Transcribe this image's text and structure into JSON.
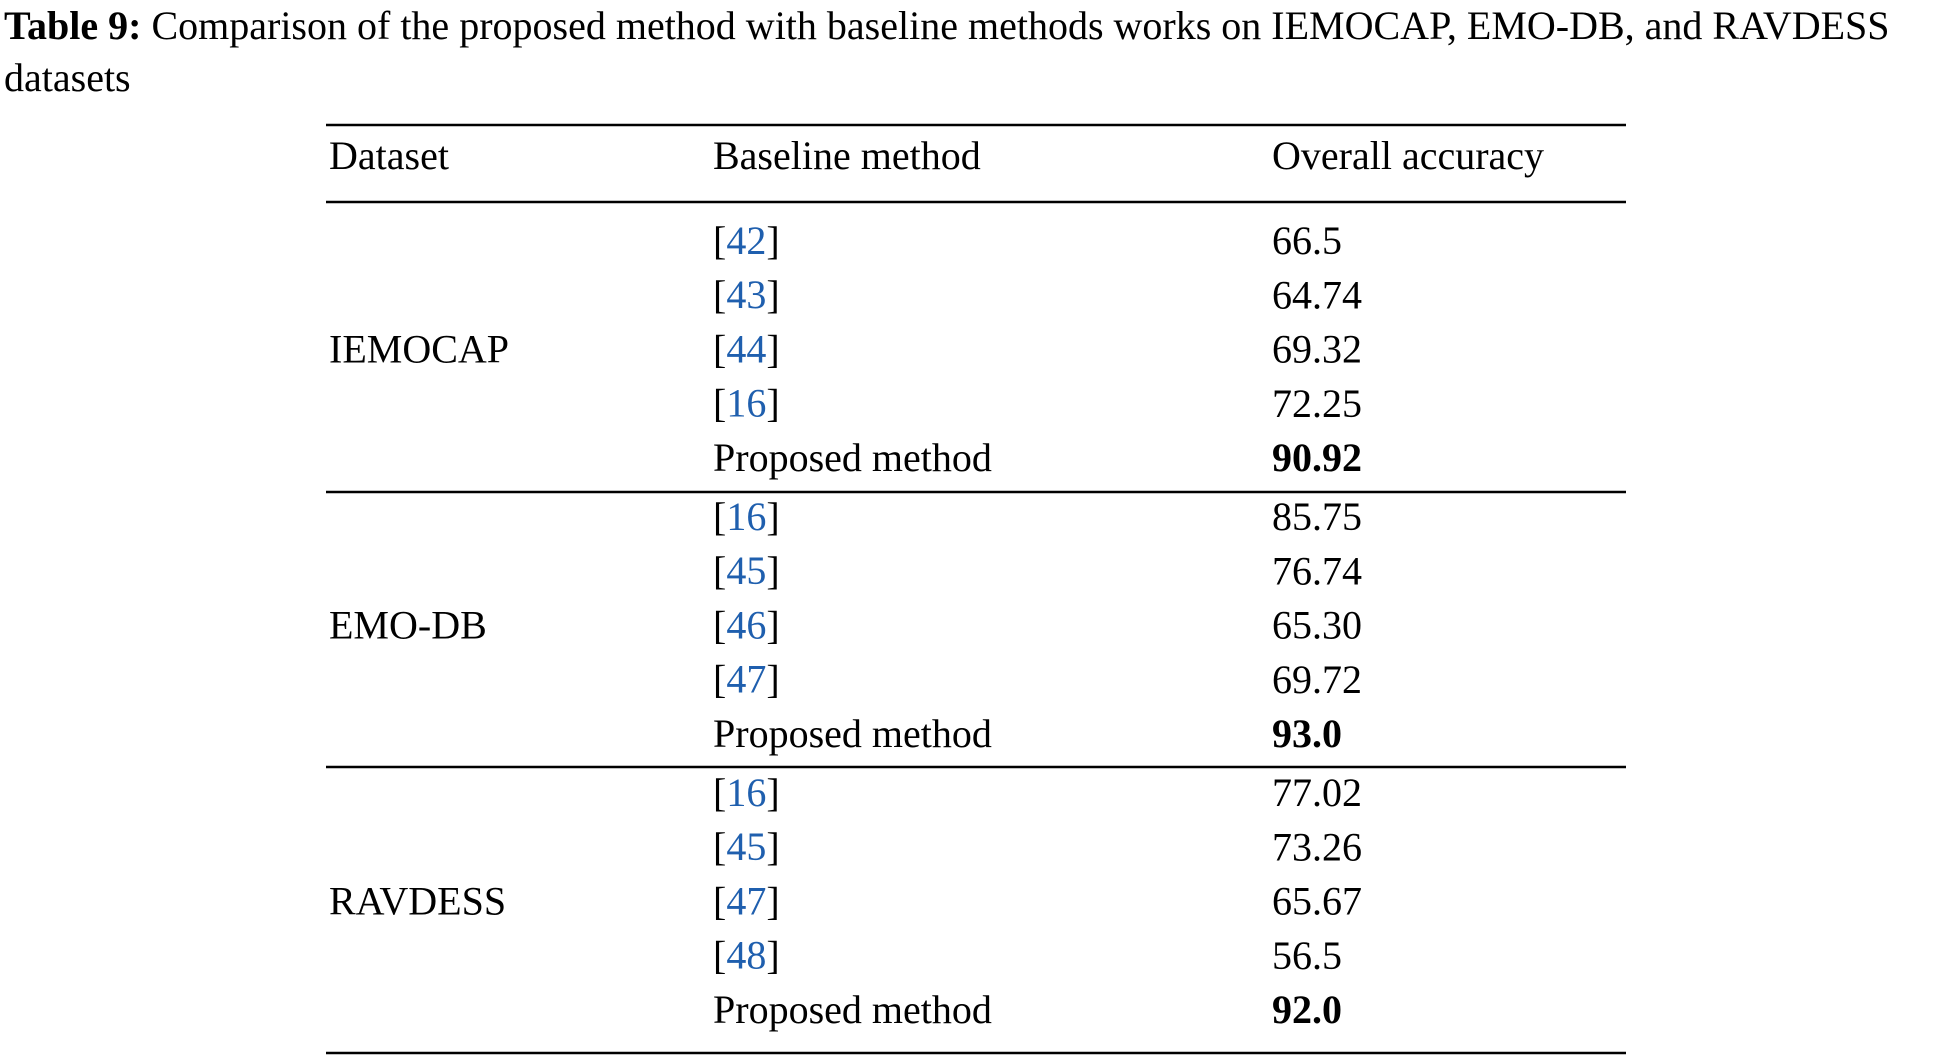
{
  "caption": {
    "label": "Table 9:",
    "text": "Comparison of the proposed method with baseline methods works on IEMOCAP, EMO-DB, and RAVDESS datasets"
  },
  "table": {
    "header": [
      "Dataset",
      "Baseline method",
      "Overall accuracy"
    ],
    "groups": [
      {
        "dataset": "IEMOCAP",
        "rows": [
          [
            "[42]",
            "66.5"
          ],
          [
            "[43]",
            "64.74"
          ],
          [
            "[44]",
            "69.32"
          ],
          [
            "[16]",
            "72.25"
          ],
          [
            "Proposed method",
            "90.92"
          ]
        ]
      },
      {
        "dataset": "EMO-DB",
        "rows": [
          [
            "[16]",
            "85.75"
          ],
          [
            "[45]",
            "76.74"
          ],
          [
            "[46]",
            "65.30"
          ],
          [
            "[47]",
            "69.72"
          ],
          [
            "Proposed method",
            "93.0"
          ]
        ]
      },
      {
        "dataset": "RAVDESS",
        "rows": [
          [
            "[16]",
            "77.02"
          ],
          [
            "[45]",
            "73.26"
          ],
          [
            "[47]",
            "65.67"
          ],
          [
            "[48]",
            "56.5"
          ],
          [
            "Proposed method",
            "92.0"
          ]
        ]
      }
    ]
  }
}
